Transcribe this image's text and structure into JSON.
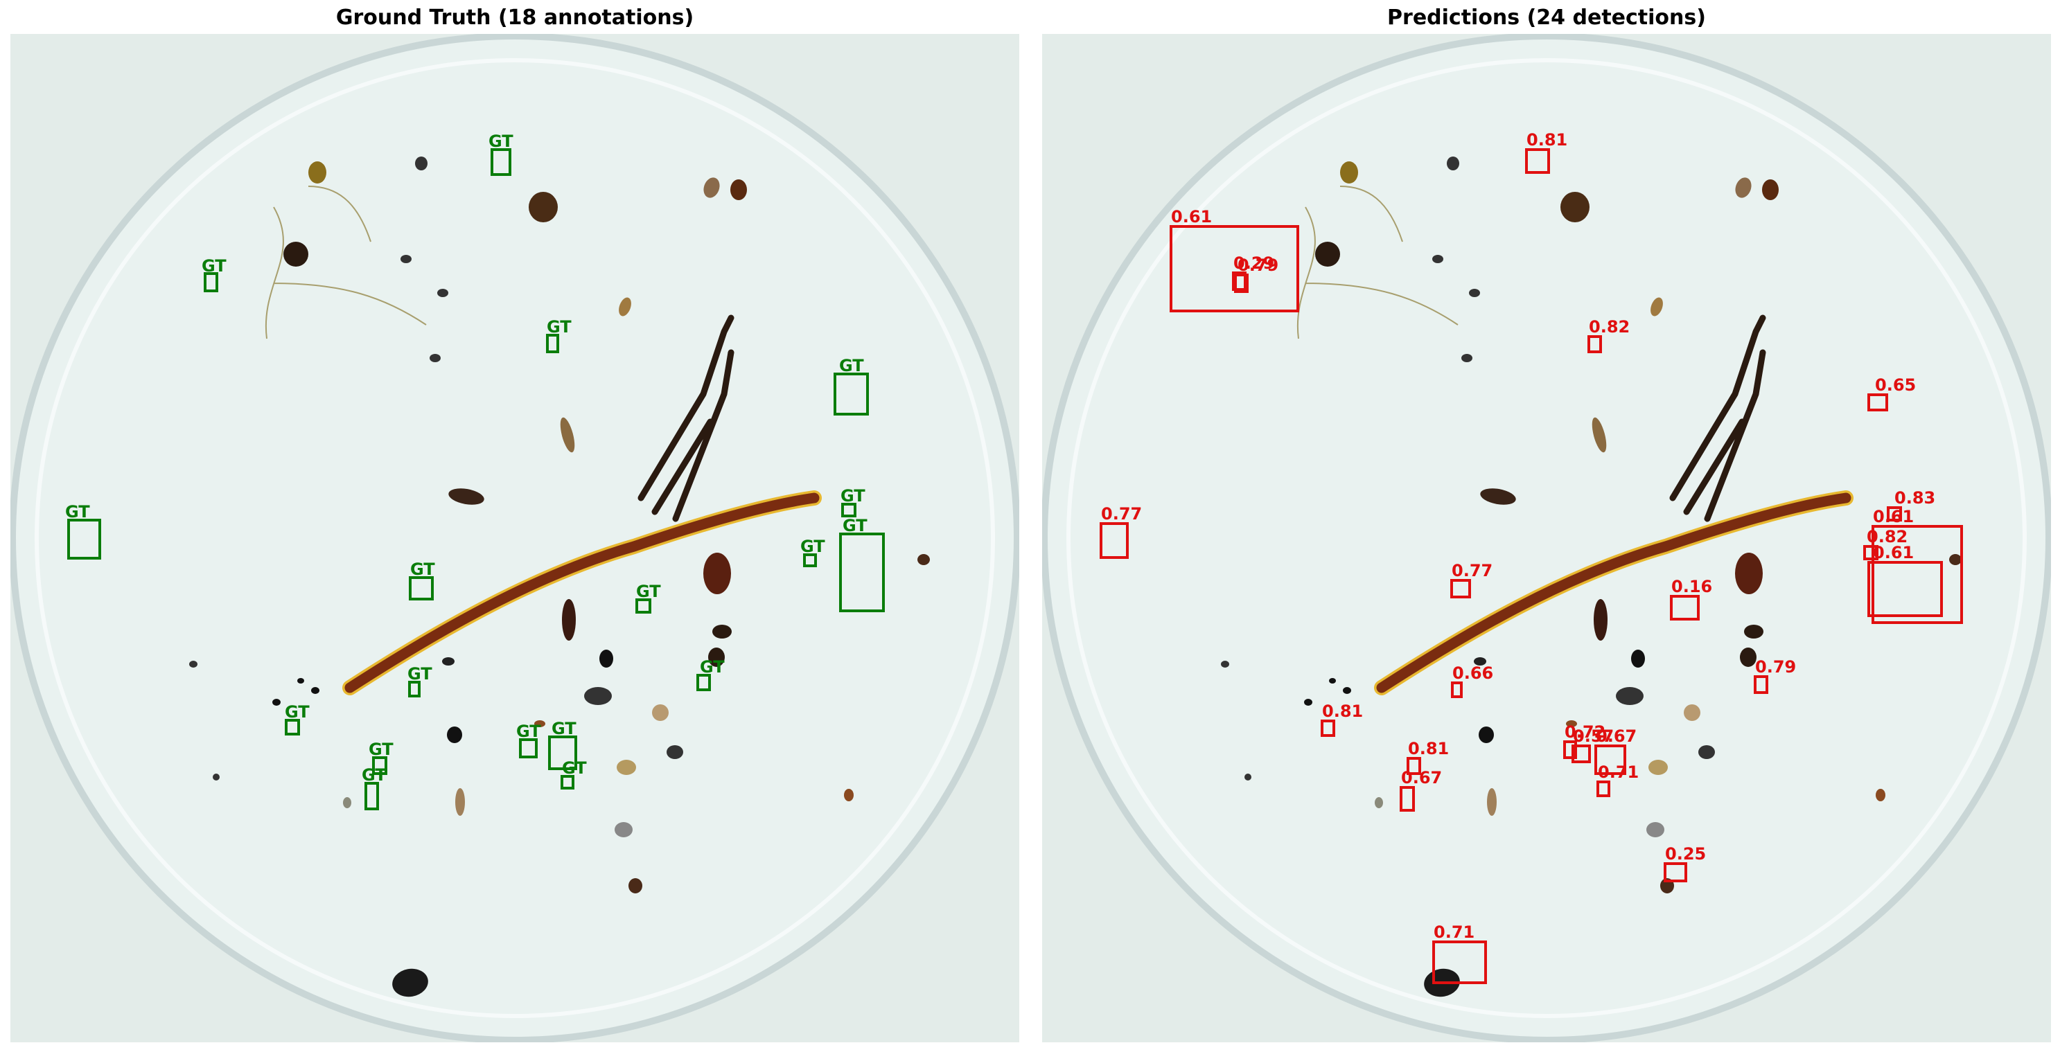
{
  "figure": {
    "left_title": "Ground Truth (18 annotations)",
    "right_title": "Predictions (24 detections)"
  },
  "colors": {
    "gt": "#0a7d0a",
    "pred": "#e01010",
    "dish_bg": "#e9f2f0",
    "dish_rim": "#c9d6d6"
  },
  "ground_truth": {
    "label": "GT",
    "annotation_count": 18
  },
  "predictions": {
    "scores": [
      "0.81",
      "0.61",
      "0.29",
      "0.79",
      "0.82",
      "0.65",
      "0.77",
      "0.83",
      "0.61",
      "0.82",
      "0.61",
      "0.77",
      "0.16",
      "0.66",
      "0.81",
      "0.79",
      "0.81",
      "0.72",
      "0.57",
      "0.67",
      "0.71",
      "0.67",
      "0.25",
      "0.71"
    ],
    "detection_count": 24
  }
}
